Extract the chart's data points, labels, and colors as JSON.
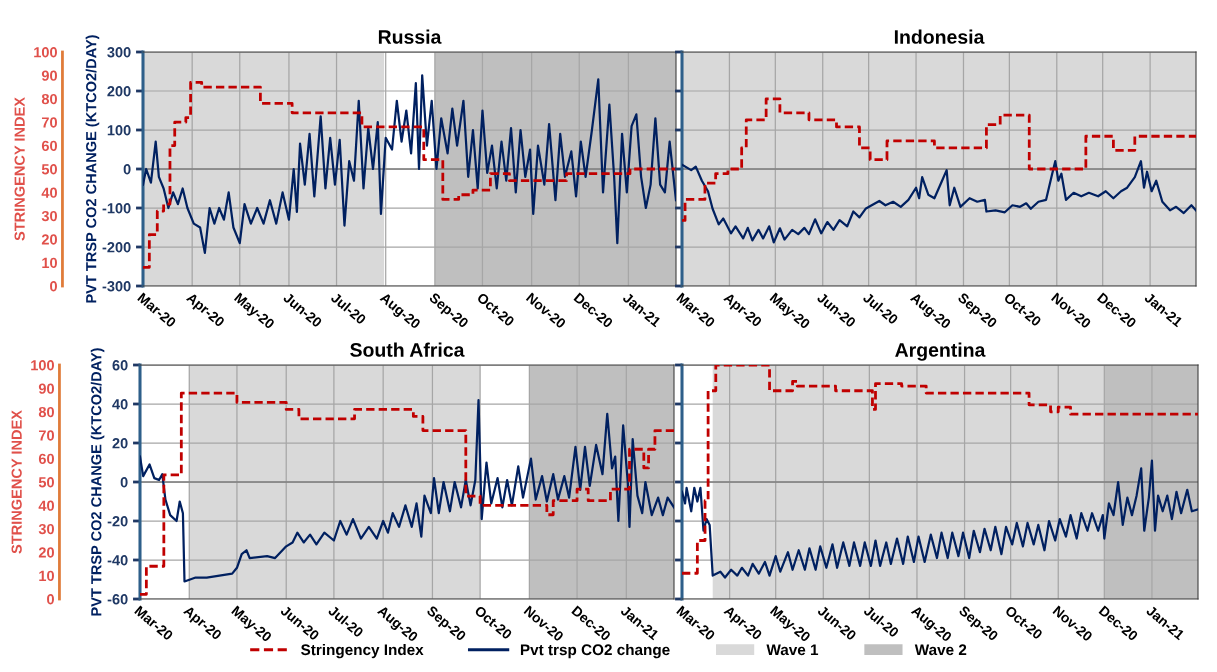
{
  "chart_data": [
    {
      "type": "line",
      "title": "Russia",
      "ylabel": "PVT TRSP CO2 CHANGE (KTCO2/DAY)",
      "y2label": "STRINGENCY INDEX",
      "xlim": [
        "2020-03-01",
        "2021-01-31"
      ],
      "xticks": [
        {
          "value": "2020-03-01",
          "label": "Mar-20"
        },
        {
          "value": "2020-04-01",
          "label": "Apr-20"
        },
        {
          "value": "2020-05-01",
          "label": "May-20"
        },
        {
          "value": "2020-06-01",
          "label": "Jun-20"
        },
        {
          "value": "2020-07-01",
          "label": "Jul-20"
        },
        {
          "value": "2020-08-01",
          "label": "Aug-20"
        },
        {
          "value": "2020-09-01",
          "label": "Sep-20"
        },
        {
          "value": "2020-10-01",
          "label": "Oct-20"
        },
        {
          "value": "2020-11-01",
          "label": "Nov-20"
        },
        {
          "value": "2020-12-01",
          "label": "Dec-20"
        },
        {
          "value": "2021-01-01",
          "label": "Jan-21"
        }
      ],
      "ylim": [
        -300,
        300
      ],
      "yticks": [
        -300,
        -200,
        -100,
        0,
        100,
        200,
        300
      ],
      "y2lim": [
        0,
        100
      ],
      "y2ticks": [
        0,
        10,
        20,
        30,
        40,
        50,
        60,
        70,
        80,
        90,
        100
      ],
      "grid": true,
      "legend": "bottom",
      "bands": [
        {
          "axis": "x",
          "from": "2020-03-01",
          "to": "2020-07-31",
          "label": "Wave 1",
          "color": "#d9d9d9"
        },
        {
          "axis": "x",
          "from": "2020-09-01",
          "to": "2021-01-31",
          "label": "Wave 2",
          "color": "#bfbfbf"
        }
      ],
      "ref_lines": [
        {
          "axis": "y",
          "value": 0,
          "color": "#7f7f7f"
        }
      ],
      "series": [
        {
          "name": "Stringency Index",
          "type": "step",
          "axis": "y2",
          "color": "#c00000",
          "line_style": "dashed",
          "x": [
            "2020-03-01",
            "2020-03-05",
            "2020-03-10",
            "2020-03-14",
            "2020-03-18",
            "2020-03-21",
            "2020-03-28",
            "2020-03-31",
            "2020-04-07",
            "2020-05-14",
            "2020-06-03",
            "2020-07-17",
            "2020-08-25",
            "2020-09-06",
            "2020-09-16",
            "2020-09-25",
            "2020-10-06",
            "2020-10-18",
            "2020-11-23",
            "2021-01-02",
            "2021-01-31"
          ],
          "values": [
            8,
            22,
            32,
            35,
            60,
            70,
            72,
            87,
            85,
            78,
            74,
            68,
            54,
            37,
            39,
            41,
            48,
            45,
            48,
            50,
            50
          ]
        },
        {
          "name": "Pvt trsp CO2 change",
          "color": "#002060",
          "line_style": "solid",
          "x": [
            "2020-03-01",
            "2020-03-03",
            "2020-03-06",
            "2020-03-09",
            "2020-03-11",
            "2020-03-14",
            "2020-03-17",
            "2020-03-20",
            "2020-03-23",
            "2020-03-26",
            "2020-03-29",
            "2020-04-02",
            "2020-04-06",
            "2020-04-09",
            "2020-04-12",
            "2020-04-15",
            "2020-04-18",
            "2020-04-21",
            "2020-04-24",
            "2020-04-27",
            "2020-05-01",
            "2020-05-04",
            "2020-05-08",
            "2020-05-12",
            "2020-05-16",
            "2020-05-20",
            "2020-05-24",
            "2020-05-28",
            "2020-06-01",
            "2020-06-04",
            "2020-06-06",
            "2020-06-08",
            "2020-06-11",
            "2020-06-14",
            "2020-06-17",
            "2020-06-21",
            "2020-06-24",
            "2020-06-27",
            "2020-06-30",
            "2020-07-03",
            "2020-07-06",
            "2020-07-09",
            "2020-07-12",
            "2020-07-15",
            "2020-07-18",
            "2020-07-21",
            "2020-07-24",
            "2020-07-27",
            "2020-07-29",
            "2020-08-01",
            "2020-08-05",
            "2020-08-08",
            "2020-08-11",
            "2020-08-14",
            "2020-08-17",
            "2020-08-20",
            "2020-08-22",
            "2020-08-24",
            "2020-08-27",
            "2020-08-30",
            "2020-09-02",
            "2020-09-05",
            "2020-09-09",
            "2020-09-12",
            "2020-09-15",
            "2020-09-19",
            "2020-09-22",
            "2020-09-25",
            "2020-09-28",
            "2020-10-01",
            "2020-10-04",
            "2020-10-07",
            "2020-10-10",
            "2020-10-13",
            "2020-10-16",
            "2020-10-19",
            "2020-10-22",
            "2020-10-25",
            "2020-10-28",
            "2020-10-31",
            "2020-11-02",
            "2020-11-05",
            "2020-11-09",
            "2020-11-12",
            "2020-11-16",
            "2020-11-19",
            "2020-11-22",
            "2020-11-26",
            "2020-11-29",
            "2020-12-02",
            "2020-12-05",
            "2020-12-09",
            "2020-12-13",
            "2020-12-16",
            "2020-12-20",
            "2020-12-23",
            "2020-12-25",
            "2020-12-28",
            "2020-12-31",
            "2021-01-03",
            "2021-01-06",
            "2021-01-09",
            "2021-01-12",
            "2021-01-15",
            "2021-01-18",
            "2021-01-21",
            "2021-01-24",
            "2021-01-27",
            "2021-01-31"
          ],
          "values": [
            -40,
            0,
            -35,
            70,
            -20,
            -50,
            -100,
            -60,
            -90,
            -50,
            -100,
            -140,
            -150,
            -215,
            -100,
            -140,
            -100,
            -130,
            -60,
            -150,
            -190,
            -90,
            -140,
            -100,
            -140,
            -80,
            -140,
            -60,
            -130,
            0,
            -110,
            65,
            -40,
            90,
            -70,
            135,
            -50,
            80,
            -40,
            75,
            -145,
            20,
            -30,
            175,
            -50,
            105,
            0,
            120,
            -115,
            80,
            50,
            175,
            70,
            150,
            40,
            220,
            0,
            240,
            60,
            175,
            0,
            130,
            40,
            155,
            60,
            175,
            -20,
            100,
            -50,
            150,
            -10,
            60,
            -50,
            70,
            -30,
            105,
            -60,
            100,
            -20,
            50,
            -115,
            60,
            -40,
            115,
            -80,
            90,
            -20,
            45,
            -70,
            70,
            -20,
            100,
            230,
            -60,
            165,
            -20,
            -190,
            90,
            -60,
            110,
            140,
            -20,
            -100,
            -40,
            130,
            -40,
            -60,
            70,
            -80
          ]
        }
      ]
    },
    {
      "type": "line",
      "title": "Indonesia",
      "tick_labels": "x",
      "xlim": [
        "2020-03-01",
        "2021-01-31"
      ],
      "xticks": [
        {
          "value": "2020-03-01",
          "label": "Mar-20"
        },
        {
          "value": "2020-04-01",
          "label": "Apr-20"
        },
        {
          "value": "2020-05-01",
          "label": "May-20"
        },
        {
          "value": "2020-06-01",
          "label": "Jun-20"
        },
        {
          "value": "2020-07-01",
          "label": "Jul-20"
        },
        {
          "value": "2020-08-01",
          "label": "Aug-20"
        },
        {
          "value": "2020-09-01",
          "label": "Sep-20"
        },
        {
          "value": "2020-10-01",
          "label": "Oct-20"
        },
        {
          "value": "2020-11-01",
          "label": "Nov-20"
        },
        {
          "value": "2020-12-01",
          "label": "Dec-20"
        },
        {
          "value": "2021-01-01",
          "label": "Jan-21"
        }
      ],
      "ylim": [
        -300,
        300
      ],
      "yticks": [
        -300,
        -200,
        -100,
        0,
        100,
        200,
        300
      ],
      "y2lim": [
        0,
        100
      ],
      "grid": true,
      "legend": "bottom",
      "bands": [
        {
          "axis": "x",
          "from": "2020-03-01",
          "to": "2021-01-31",
          "color": "#d9d9d9"
        }
      ],
      "ref_lines": [
        {
          "axis": "y",
          "value": 0,
          "color": "#7f7f7f"
        }
      ],
      "series": [
        {
          "name": "Stringency Index",
          "type": "step",
          "axis": "y2",
          "color": "#c00000",
          "line_style": "dashed",
          "x": [
            "2020-03-01",
            "2020-03-03",
            "2020-03-16",
            "2020-03-23",
            "2020-03-31",
            "2020-04-09",
            "2020-04-12",
            "2020-04-25",
            "2020-05-04",
            "2020-05-23",
            "2020-06-10",
            "2020-06-25",
            "2020-07-02",
            "2020-07-13",
            "2020-08-13",
            "2020-09-16",
            "2020-09-25",
            "2020-10-14",
            "2020-11-20",
            "2020-12-08",
            "2020-12-22",
            "2021-01-31"
          ],
          "values": [
            28,
            37,
            44,
            48,
            50,
            59,
            71,
            80,
            74,
            71,
            68,
            59,
            54,
            62,
            59,
            69,
            73,
            50,
            64,
            58,
            64,
            64
          ]
        },
        {
          "name": "Pvt trsp CO2 change",
          "color": "#002060",
          "line_style": "solid",
          "x": [
            "2020-03-01",
            "2020-03-07",
            "2020-03-10",
            "2020-03-14",
            "2020-03-18",
            "2020-03-21",
            "2020-03-25",
            "2020-03-28",
            "2020-04-02",
            "2020-04-05",
            "2020-04-10",
            "2020-04-13",
            "2020-04-16",
            "2020-04-20",
            "2020-04-23",
            "2020-04-27",
            "2020-04-30",
            "2020-05-04",
            "2020-05-07",
            "2020-05-12",
            "2020-05-16",
            "2020-05-20",
            "2020-05-23",
            "2020-05-27",
            "2020-05-31",
            "2020-06-04",
            "2020-06-08",
            "2020-06-12",
            "2020-06-17",
            "2020-06-21",
            "2020-06-25",
            "2020-06-29",
            "2020-07-03",
            "2020-07-08",
            "2020-07-12",
            "2020-07-17",
            "2020-07-22",
            "2020-07-27",
            "2020-08-01",
            "2020-08-03",
            "2020-08-05",
            "2020-08-09",
            "2020-08-13",
            "2020-08-18",
            "2020-08-21",
            "2020-08-23",
            "2020-08-26",
            "2020-08-30",
            "2020-09-05",
            "2020-09-10",
            "2020-09-15",
            "2020-09-16",
            "2020-09-22",
            "2020-09-28",
            "2020-10-03",
            "2020-10-08",
            "2020-10-12",
            "2020-10-15",
            "2020-10-20",
            "2020-10-25",
            "2020-10-29",
            "2020-10-31",
            "2020-11-02",
            "2020-11-04",
            "2020-11-07",
            "2020-11-12",
            "2020-11-17",
            "2020-11-22",
            "2020-11-28",
            "2020-12-03",
            "2020-12-08",
            "2020-12-13",
            "2020-12-17",
            "2020-12-22",
            "2020-12-26",
            "2020-12-28",
            "2020-12-30",
            "2021-01-02",
            "2021-01-05",
            "2021-01-09",
            "2021-01-14",
            "2021-01-18",
            "2021-01-23",
            "2021-01-28",
            "2021-01-31"
          ],
          "values": [
            11,
            -3,
            6,
            -30,
            -57,
            -102,
            -142,
            -127,
            -165,
            -147,
            -178,
            -151,
            -183,
            -156,
            -178,
            -147,
            -188,
            -152,
            -181,
            -156,
            -167,
            -151,
            -167,
            -129,
            -165,
            -136,
            -156,
            -131,
            -147,
            -109,
            -124,
            -102,
            -93,
            -82,
            -93,
            -84,
            -97,
            -79,
            -48,
            -75,
            -21,
            -66,
            -75,
            -30,
            -3,
            -93,
            -48,
            -97,
            -75,
            -84,
            -79,
            -109,
            -106,
            -111,
            -93,
            -97,
            -88,
            -102,
            -84,
            -79,
            -12,
            20,
            -30,
            -12,
            -79,
            -61,
            -70,
            -61,
            -70,
            -57,
            -75,
            -57,
            -48,
            -21,
            20,
            -48,
            -7,
            -57,
            -30,
            -84,
            -106,
            -97,
            -113,
            -93,
            -106
          ]
        }
      ]
    },
    {
      "type": "line",
      "title": "South Africa",
      "ylabel": "PVT TRSP CO2 CHANGE (KTCO2/DAY)",
      "y2label": "STRINGENCY INDEX",
      "xlim": [
        "2020-03-01",
        "2021-01-31"
      ],
      "xticks": [
        {
          "value": "2020-03-01",
          "label": "Mar-20"
        },
        {
          "value": "2020-04-01",
          "label": "Apr-20"
        },
        {
          "value": "2020-05-01",
          "label": "May-20"
        },
        {
          "value": "2020-06-01",
          "label": "Jun-20"
        },
        {
          "value": "2020-07-01",
          "label": "Jul-20"
        },
        {
          "value": "2020-08-01",
          "label": "Aug-20"
        },
        {
          "value": "2020-09-01",
          "label": "Sep-20"
        },
        {
          "value": "2020-10-01",
          "label": "Oct-20"
        },
        {
          "value": "2020-11-01",
          "label": "Nov-20"
        },
        {
          "value": "2020-12-01",
          "label": "Dec-20"
        },
        {
          "value": "2021-01-01",
          "label": "Jan-21"
        }
      ],
      "ylim": [
        -60,
        60
      ],
      "yticks": [
        -60,
        -40,
        -20,
        0,
        20,
        40,
        60
      ],
      "y2lim": [
        0,
        100
      ],
      "y2ticks": [
        0,
        10,
        20,
        30,
        40,
        50,
        60,
        70,
        80,
        90,
        100
      ],
      "grid": true,
      "legend": "bottom",
      "bands": [
        {
          "axis": "x",
          "from": "2020-04-01",
          "to": "2020-10-01",
          "color": "#d9d9d9"
        },
        {
          "axis": "x",
          "from": "2020-11-01",
          "to": "2021-01-31",
          "color": "#bfbfbf"
        }
      ],
      "ref_lines": [
        {
          "axis": "y",
          "value": 0,
          "color": "#7f7f7f"
        }
      ],
      "series": [
        {
          "name": "Stringency Index",
          "type": "step",
          "axis": "y2",
          "color": "#c00000",
          "line_style": "dashed",
          "x": [
            "2020-03-01",
            "2020-03-05",
            "2020-03-16",
            "2020-03-27",
            "2020-05-01",
            "2020-06-01",
            "2020-06-09",
            "2020-07-14",
            "2020-08-20",
            "2020-08-26",
            "2020-09-22",
            "2020-10-01",
            "2020-11-12",
            "2020-11-16",
            "2020-12-01",
            "2020-12-08",
            "2020-12-22",
            "2021-01-03",
            "2021-01-12",
            "2021-01-15",
            "2021-01-19",
            "2021-01-31"
          ],
          "values": [
            2,
            14,
            53,
            88,
            84,
            81,
            77,
            81,
            78,
            72,
            44,
            40,
            36,
            42,
            47,
            42,
            47,
            64,
            56,
            64,
            72,
            72
          ]
        },
        {
          "name": "Pvt trsp CO2 change",
          "color": "#002060",
          "line_style": "solid",
          "x": [
            "2020-03-01",
            "2020-03-03",
            "2020-03-07",
            "2020-03-10",
            "2020-03-13",
            "2020-03-15",
            "2020-03-17",
            "2020-03-20",
            "2020-03-24",
            "2020-03-26",
            "2020-03-28",
            "2020-03-29",
            "2020-04-05",
            "2020-04-12",
            "2020-04-20",
            "2020-04-28",
            "2020-05-01",
            "2020-05-04",
            "2020-05-07",
            "2020-05-09",
            "2020-05-20",
            "2020-05-25",
            "2020-06-01",
            "2020-06-05",
            "2020-06-08",
            "2020-06-12",
            "2020-06-16",
            "2020-06-20",
            "2020-06-25",
            "2020-07-01",
            "2020-07-05",
            "2020-07-09",
            "2020-07-13",
            "2020-07-18",
            "2020-07-23",
            "2020-07-28",
            "2020-08-01",
            "2020-08-04",
            "2020-08-07",
            "2020-08-11",
            "2020-08-15",
            "2020-08-19",
            "2020-08-22",
            "2020-08-25",
            "2020-08-27",
            "2020-08-31",
            "2020-09-02",
            "2020-09-05",
            "2020-09-08",
            "2020-09-12",
            "2020-09-15",
            "2020-09-19",
            "2020-09-22",
            "2020-09-25",
            "2020-09-28",
            "2020-09-30",
            "2020-10-02",
            "2020-10-05",
            "2020-10-08",
            "2020-10-12",
            "2020-10-15",
            "2020-10-18",
            "2020-10-21",
            "2020-10-25",
            "2020-10-28",
            "2020-11-02",
            "2020-11-05",
            "2020-11-09",
            "2020-11-12",
            "2020-11-16",
            "2020-11-19",
            "2020-11-23",
            "2020-11-26",
            "2020-11-30",
            "2020-12-03",
            "2020-12-06",
            "2020-12-09",
            "2020-12-13",
            "2020-12-17",
            "2020-12-20",
            "2020-12-23",
            "2020-12-25",
            "2020-12-27",
            "2020-12-30",
            "2021-01-02",
            "2021-01-03",
            "2021-01-05",
            "2021-01-08",
            "2021-01-11",
            "2021-01-13",
            "2021-01-17",
            "2021-01-21",
            "2021-01-24",
            "2021-01-27",
            "2021-01-31"
          ],
          "values": [
            13,
            3,
            9,
            2,
            1,
            4,
            -9,
            -17,
            -20,
            -10,
            -16,
            -51,
            -49,
            -49,
            -48,
            -47,
            -44,
            -37,
            -35,
            -39,
            -38,
            -39,
            -33,
            -31,
            -26,
            -31,
            -27,
            -32,
            -26,
            -30,
            -20,
            -27,
            -19,
            -29,
            -23,
            -29,
            -20,
            -26,
            -16,
            -23,
            -12,
            -23,
            -11,
            -28,
            -7,
            -16,
            2,
            -16,
            0,
            -15,
            0,
            -13,
            1,
            -12,
            1,
            42,
            -19,
            10,
            -11,
            2,
            -13,
            1,
            -12,
            8,
            -8,
            12,
            -9,
            3,
            -10,
            4,
            -9,
            3,
            -8,
            18,
            -4,
            18,
            -2,
            19,
            4,
            35,
            7,
            13,
            -20,
            29,
            -1,
            -23,
            22,
            -7,
            -16,
            0,
            -17,
            -8,
            -17,
            -8,
            -13
          ]
        }
      ]
    },
    {
      "type": "line",
      "title": "Argentina",
      "tick_labels": "x",
      "xlim": [
        "2020-03-01",
        "2021-01-31"
      ],
      "xticks": [
        {
          "value": "2020-03-01",
          "label": "Mar-20"
        },
        {
          "value": "2020-04-01",
          "label": "Apr-20"
        },
        {
          "value": "2020-05-01",
          "label": "May-20"
        },
        {
          "value": "2020-06-01",
          "label": "Jun-20"
        },
        {
          "value": "2020-07-01",
          "label": "Jul-20"
        },
        {
          "value": "2020-08-01",
          "label": "Aug-20"
        },
        {
          "value": "2020-09-01",
          "label": "Sep-20"
        },
        {
          "value": "2020-10-01",
          "label": "Oct-20"
        },
        {
          "value": "2020-11-01",
          "label": "Nov-20"
        },
        {
          "value": "2020-12-01",
          "label": "Dec-20"
        },
        {
          "value": "2021-01-01",
          "label": "Jan-21"
        }
      ],
      "ylim": [
        -60,
        60
      ],
      "yticks": [
        -60,
        -40,
        -20,
        0,
        20,
        40,
        60
      ],
      "y2lim": [
        0,
        100
      ],
      "grid": true,
      "legend": "bottom",
      "bands": [
        {
          "axis": "x",
          "from": "2020-03-21",
          "to": "2020-12-01",
          "color": "#d9d9d9"
        },
        {
          "axis": "x",
          "from": "2020-12-01",
          "to": "2021-01-31",
          "color": "#bfbfbf"
        }
      ],
      "ref_lines": [
        {
          "axis": "y",
          "value": 0,
          "color": "#7f7f7f"
        }
      ],
      "series": [
        {
          "name": "Stringency Index",
          "type": "step",
          "axis": "y2",
          "color": "#c00000",
          "line_style": "dashed",
          "x": [
            "2020-03-01",
            "2020-03-11",
            "2020-03-16",
            "2020-03-18",
            "2020-03-23",
            "2020-04-27",
            "2020-05-12",
            "2020-05-15",
            "2020-06-09",
            "2020-07-03",
            "2020-07-05",
            "2020-07-22",
            "2020-08-07",
            "2020-10-13",
            "2020-10-27",
            "2020-11-01",
            "2020-11-09",
            "2021-01-31"
          ],
          "values": [
            11,
            25,
            42,
            89,
            100,
            89,
            93,
            91,
            89,
            81,
            92,
            91,
            88,
            83,
            80,
            82,
            79,
            79
          ]
        },
        {
          "name": "Pvt trsp CO2 change",
          "color": "#002060",
          "line_style": "solid",
          "x": [
            "2020-03-01",
            "2020-03-03",
            "2020-03-04",
            "2020-03-07",
            "2020-03-09",
            "2020-03-11",
            "2020-03-13",
            "2020-03-15",
            "2020-03-17",
            "2020-03-19",
            "2020-03-21",
            "2020-03-26",
            "2020-03-29",
            "2020-04-02",
            "2020-04-06",
            "2020-04-09",
            "2020-04-13",
            "2020-04-16",
            "2020-04-20",
            "2020-04-24",
            "2020-04-27",
            "2020-05-01",
            "2020-05-04",
            "2020-05-09",
            "2020-05-12",
            "2020-05-16",
            "2020-05-20",
            "2020-05-23",
            "2020-05-27",
            "2020-05-30",
            "2020-06-03",
            "2020-06-07",
            "2020-06-10",
            "2020-06-14",
            "2020-06-18",
            "2020-06-21",
            "2020-06-25",
            "2020-06-28",
            "2020-07-02",
            "2020-07-05",
            "2020-07-08",
            "2020-07-12",
            "2020-07-15",
            "2020-07-19",
            "2020-07-23",
            "2020-07-26",
            "2020-07-30",
            "2020-08-02",
            "2020-08-06",
            "2020-08-10",
            "2020-08-14",
            "2020-08-17",
            "2020-08-21",
            "2020-08-24",
            "2020-08-28",
            "2020-08-31",
            "2020-09-04",
            "2020-09-07",
            "2020-09-11",
            "2020-09-14",
            "2020-09-18",
            "2020-09-21",
            "2020-09-25",
            "2020-09-28",
            "2020-10-02",
            "2020-10-05",
            "2020-10-09",
            "2020-10-12",
            "2020-10-16",
            "2020-10-19",
            "2020-10-23",
            "2020-10-26",
            "2020-10-30",
            "2020-11-02",
            "2020-11-06",
            "2020-11-09",
            "2020-11-13",
            "2020-11-16",
            "2020-11-20",
            "2020-11-23",
            "2020-11-27",
            "2020-11-30",
            "2020-12-01",
            "2020-12-04",
            "2020-12-07",
            "2020-12-10",
            "2020-12-13",
            "2020-12-16",
            "2020-12-19",
            "2020-12-22",
            "2020-12-25",
            "2020-12-27",
            "2020-12-30",
            "2021-01-01",
            "2021-01-03",
            "2021-01-05",
            "2021-01-08",
            "2021-01-11",
            "2021-01-14",
            "2021-01-17",
            "2021-01-20",
            "2021-01-24",
            "2021-01-27",
            "2021-01-31"
          ],
          "values": [
            -5,
            -11,
            -3,
            -15,
            -3,
            -10,
            -3,
            -25,
            -19,
            -22,
            -48,
            -46,
            -49,
            -45,
            -48,
            -44,
            -48,
            -42,
            -47,
            -41,
            -48,
            -38,
            -46,
            -36,
            -45,
            -35,
            -45,
            -34,
            -45,
            -33,
            -44,
            -32,
            -44,
            -31,
            -43,
            -31,
            -43,
            -31,
            -43,
            -30,
            -43,
            -31,
            -42,
            -29,
            -42,
            -28,
            -41,
            -28,
            -41,
            -27,
            -39,
            -26,
            -39,
            -26,
            -38,
            -26,
            -39,
            -25,
            -36,
            -24,
            -35,
            -23,
            -37,
            -23,
            -32,
            -21,
            -33,
            -21,
            -32,
            -22,
            -35,
            -20,
            -30,
            -19,
            -28,
            -17,
            -29,
            -16,
            -25,
            -16,
            -25,
            -17,
            -29,
            -11,
            -17,
            0,
            -22,
            -8,
            -17,
            -7,
            7,
            -25,
            -8,
            11,
            -25,
            -7,
            -15,
            -7,
            -19,
            -5,
            -16,
            -4,
            -15,
            -14
          ]
        }
      ]
    }
  ]
}
